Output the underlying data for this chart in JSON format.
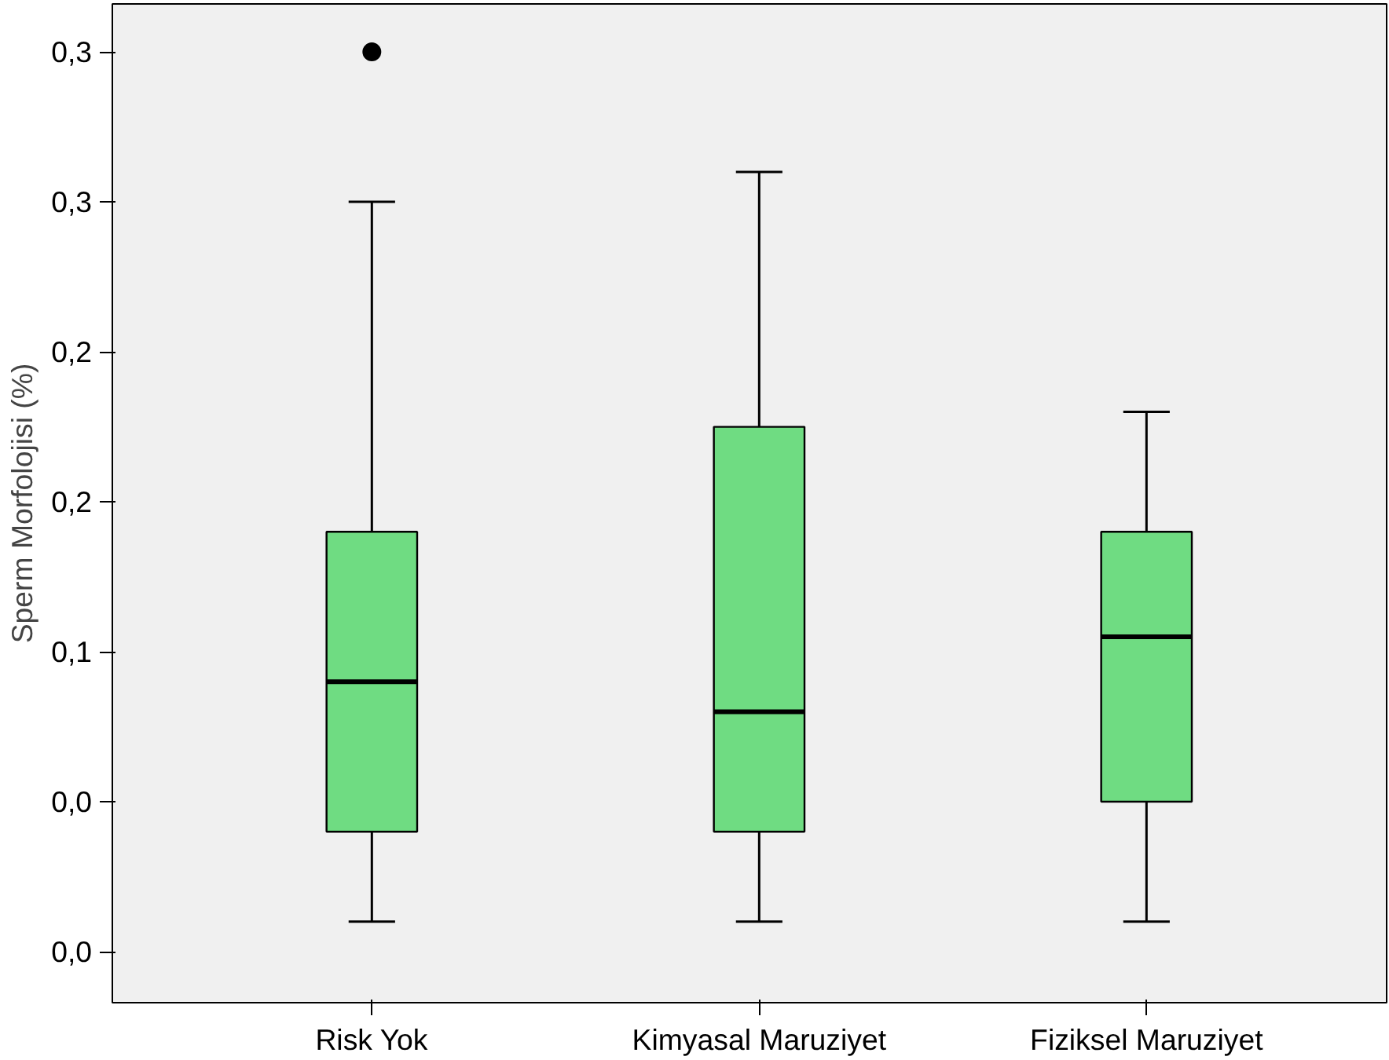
{
  "chart_data": {
    "type": "box",
    "ylabel": "Sperm Morfolojisi (%)",
    "categories": [
      "Risk Yok",
      "Kimyasal Maruziyet",
      "Fiziksel Maruziyet"
    ],
    "color": "#6fdc82",
    "boxes": [
      {
        "low": 0.01,
        "q1": 0.04,
        "median": 0.09,
        "q3": 0.14,
        "high": 0.25,
        "outliers": [
          0.3
        ]
      },
      {
        "low": 0.01,
        "q1": 0.04,
        "median": 0.08,
        "q3": 0.175,
        "high": 0.26
      },
      {
        "low": 0.01,
        "q1": 0.05,
        "median": 0.105,
        "q3": 0.14,
        "high": 0.18
      }
    ],
    "ylim": [
      -0.017,
      0.316
    ],
    "yticks": [
      {
        "value": 0,
        "label": "0,0"
      },
      {
        "value": 0.05,
        "label": "0,0"
      },
      {
        "value": 0.1,
        "label": "0,1"
      },
      {
        "value": 0.15,
        "label": "0,2"
      },
      {
        "value": 0.2,
        "label": "0,2"
      },
      {
        "value": 0.25,
        "label": "0,3"
      },
      {
        "value": 0.3,
        "label": "0,3"
      }
    ],
    "grid": false
  }
}
